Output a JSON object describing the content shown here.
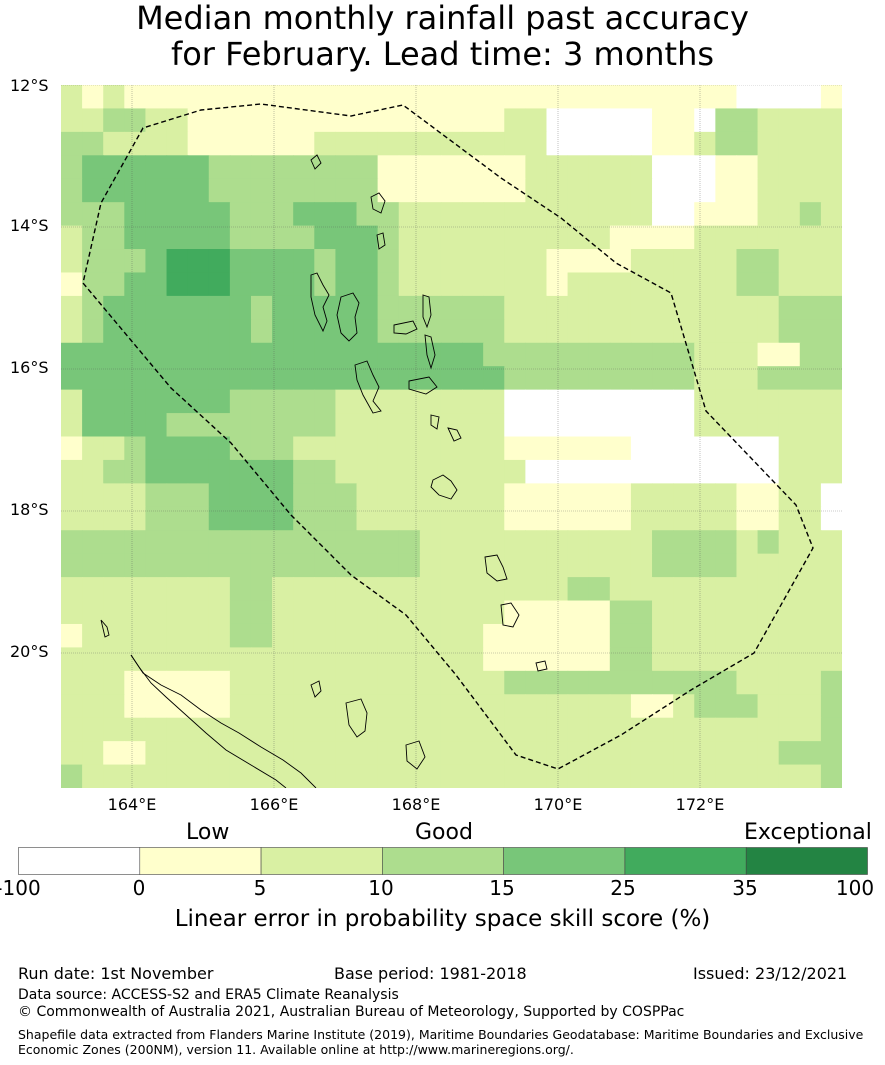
{
  "title": {
    "line1": "Median monthly rainfall past accuracy",
    "line2": "for February. Lead time: 3 months"
  },
  "map": {
    "lon_range": [
      163,
      174
    ],
    "lat_range": [
      -21.85,
      -12
    ],
    "lat_labels": [
      "12°S",
      "14°S",
      "16°S",
      "18°S",
      "20°S"
    ],
    "lon_labels": [
      "164°E",
      "166°E",
      "168°E",
      "170°E",
      "172°E"
    ],
    "gridlines": true,
    "boundary_line": "dashed",
    "colors": [
      "#ffffff",
      "#ffffcc",
      "#d9f0a3",
      "#addd8e",
      "#78c679",
      "#41ab5d",
      "#238443"
    ]
  },
  "legend": {
    "categories": {
      "low": "Low",
      "good": "Good",
      "exceptional": "Exceptional"
    },
    "ticks": [
      "-100",
      "0",
      "5",
      "10",
      "15",
      "25",
      "35",
      "100"
    ],
    "title": "Linear error in probability space skill score (%)"
  },
  "footer": {
    "run_date": "Run date: 1st November",
    "base_period": "Base period: 1981-2018",
    "issued": "Issued: 23/12/2021",
    "data_source": "Data source: ACCESS-S2 and ERA5 Climate Reanalysis",
    "copyright": "© Commonwealth of Australia 2021, Australian Bureau of Meteorology, Supported by COSPPac",
    "shapefile_line1": "Shapefile data extracted from Flanders Marine Institute (2019), Maritime Boundaries Geodatabase: Maritime Boundaries and Exclusive",
    "shapefile_line2": "Economic Zones (200NM), version 11. Available online at http://www.marineregions.org/."
  }
}
